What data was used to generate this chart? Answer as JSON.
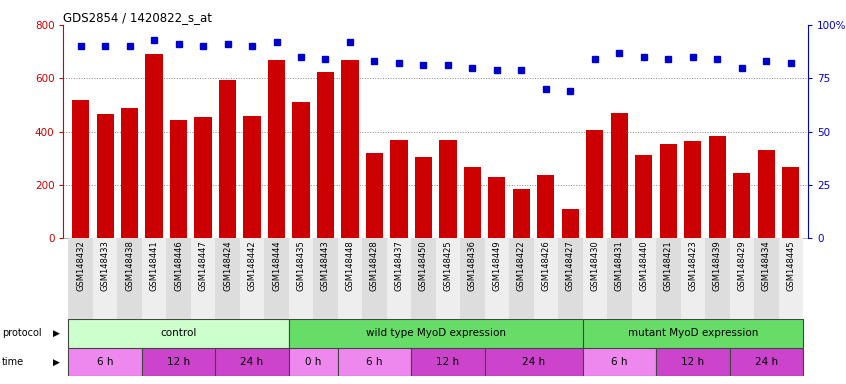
{
  "title": "GDS2854 / 1420822_s_at",
  "samples": [
    "GSM148432",
    "GSM148433",
    "GSM148438",
    "GSM148441",
    "GSM148446",
    "GSM148447",
    "GSM148424",
    "GSM148442",
    "GSM148444",
    "GSM148435",
    "GSM148443",
    "GSM148448",
    "GSM148428",
    "GSM148437",
    "GSM148450",
    "GSM148425",
    "GSM148436",
    "GSM148449",
    "GSM148422",
    "GSM148426",
    "GSM148427",
    "GSM148430",
    "GSM148431",
    "GSM148440",
    "GSM148421",
    "GSM148423",
    "GSM148439",
    "GSM148429",
    "GSM148434",
    "GSM148445"
  ],
  "counts": [
    520,
    465,
    490,
    690,
    445,
    455,
    595,
    460,
    670,
    510,
    625,
    670,
    320,
    370,
    305,
    370,
    265,
    228,
    185,
    235,
    110,
    405,
    470,
    310,
    355,
    365,
    385,
    245,
    330,
    268
  ],
  "percentiles": [
    90,
    90,
    90,
    93,
    91,
    90,
    91,
    90,
    92,
    85,
    84,
    92,
    83,
    82,
    81,
    81,
    80,
    79,
    79,
    70,
    69,
    84,
    87,
    85,
    84,
    85,
    84,
    80,
    83,
    82
  ],
  "bar_color": "#cc0000",
  "dot_color": "#0000cc",
  "ylim_left": [
    0,
    800
  ],
  "ylim_right": [
    0,
    100
  ],
  "yticks_left": [
    0,
    200,
    400,
    600,
    800
  ],
  "yticks_right": [
    0,
    25,
    50,
    75,
    100
  ],
  "ytick_right_labels": [
    "0",
    "25",
    "50",
    "75",
    "100%"
  ],
  "protocol_groups": [
    {
      "label": "control",
      "start": 0,
      "end": 9,
      "color": "#ccffcc"
    },
    {
      "label": "wild type MyoD expression",
      "start": 9,
      "end": 21,
      "color": "#66dd66"
    },
    {
      "label": "mutant MyoD expression",
      "start": 21,
      "end": 30,
      "color": "#66dd66"
    }
  ],
  "time_groups": [
    {
      "label": "6 h",
      "start": 0,
      "end": 3,
      "color": "#ee88ee"
    },
    {
      "label": "12 h",
      "start": 3,
      "end": 6,
      "color": "#cc44cc"
    },
    {
      "label": "24 h",
      "start": 6,
      "end": 9,
      "color": "#cc44cc"
    },
    {
      "label": "0 h",
      "start": 9,
      "end": 11,
      "color": "#ee88ee"
    },
    {
      "label": "6 h",
      "start": 11,
      "end": 14,
      "color": "#ee88ee"
    },
    {
      "label": "12 h",
      "start": 14,
      "end": 17,
      "color": "#cc44cc"
    },
    {
      "label": "24 h",
      "start": 17,
      "end": 21,
      "color": "#cc44cc"
    },
    {
      "label": "6 h",
      "start": 21,
      "end": 24,
      "color": "#ee88ee"
    },
    {
      "label": "12 h",
      "start": 24,
      "end": 27,
      "color": "#cc44cc"
    },
    {
      "label": "24 h",
      "start": 27,
      "end": 30,
      "color": "#cc44cc"
    }
  ],
  "bg_color": "#ffffff",
  "grid_color": "#888888",
  "left_axis_color": "#cc0000",
  "right_axis_color": "#0000cc",
  "label_bg_even": "#dddddd",
  "label_bg_odd": "#eeeeee"
}
